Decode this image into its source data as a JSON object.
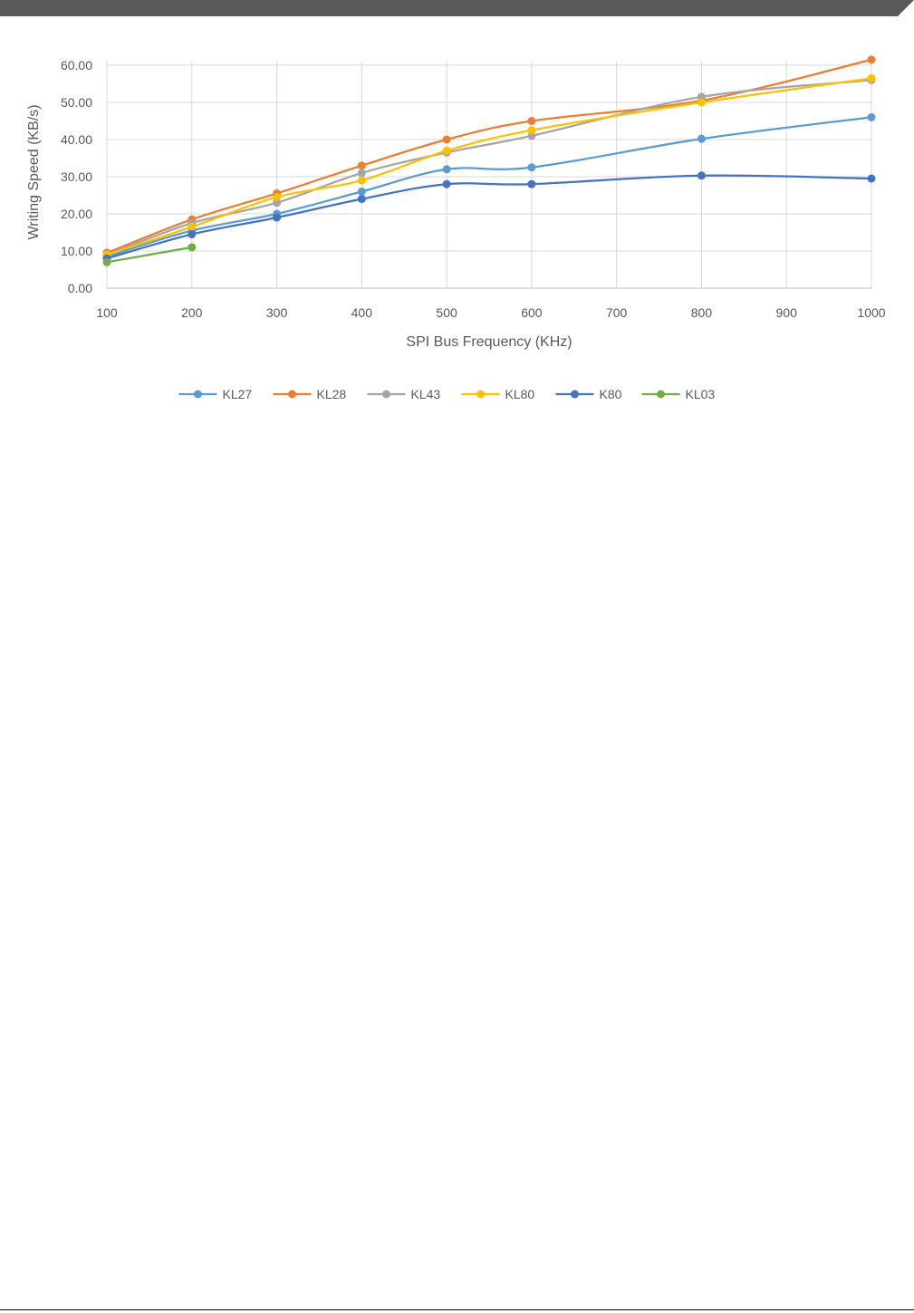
{
  "colors": {
    "header_bar": "#595959",
    "grid": "#d9d9d9",
    "axis": "#bfbfbf",
    "text": "#595959"
  },
  "chart_data": {
    "type": "line",
    "title": "",
    "xlabel": "SPI Bus Frequency (KHz)",
    "ylabel": "Writing Speed (KB/s)",
    "x_ticks": [
      "100",
      "200",
      "300",
      "400",
      "500",
      "600",
      "700",
      "800",
      "900",
      "1000"
    ],
    "y_ticks": [
      "0.00",
      "10.00",
      "20.00",
      "30.00",
      "40.00",
      "50.00",
      "60.00"
    ],
    "xlim": [
      100,
      1000
    ],
    "ylim": [
      0,
      60
    ],
    "grid": true,
    "smooth": true,
    "legend_position": "bottom",
    "series": [
      {
        "name": "KL27",
        "color": "#5b9bd5",
        "points": [
          [
            100,
            8.5
          ],
          [
            200,
            15.5
          ],
          [
            300,
            20.0
          ],
          [
            400,
            26.0
          ],
          [
            500,
            32.0
          ],
          [
            600,
            32.5
          ],
          [
            800,
            40.2
          ],
          [
            1000,
            46.0
          ]
        ]
      },
      {
        "name": "KL28",
        "color": "#ed7d31",
        "points": [
          [
            100,
            9.5
          ],
          [
            200,
            18.5
          ],
          [
            300,
            25.5
          ],
          [
            400,
            33.0
          ],
          [
            500,
            40.0
          ],
          [
            600,
            45.0
          ],
          [
            800,
            50.5
          ],
          [
            1000,
            61.5
          ]
        ]
      },
      {
        "name": "KL43",
        "color": "#a5a5a5",
        "points": [
          [
            100,
            9.0
          ],
          [
            200,
            17.5
          ],
          [
            300,
            23.0
          ],
          [
            400,
            31.0
          ],
          [
            500,
            36.5
          ],
          [
            600,
            41.0
          ],
          [
            800,
            51.5
          ],
          [
            1000,
            56.0
          ]
        ]
      },
      {
        "name": "KL80",
        "color": "#ffc000",
        "points": [
          [
            100,
            9.0
          ],
          [
            200,
            16.5
          ],
          [
            300,
            24.5
          ],
          [
            400,
            29.0
          ],
          [
            500,
            37.0
          ],
          [
            600,
            42.5
          ],
          [
            800,
            50.0
          ],
          [
            1000,
            56.5
          ]
        ]
      },
      {
        "name": "K80",
        "color": "#4472c4",
        "points": [
          [
            100,
            8.0
          ],
          [
            200,
            14.5
          ],
          [
            300,
            19.0
          ],
          [
            400,
            24.0
          ],
          [
            500,
            28.0
          ],
          [
            600,
            28.0
          ],
          [
            800,
            30.3
          ],
          [
            1000,
            29.5
          ]
        ]
      },
      {
        "name": "KL03",
        "color": "#70ad47",
        "points": [
          [
            100,
            7.0
          ],
          [
            200,
            11.0
          ]
        ]
      }
    ]
  }
}
